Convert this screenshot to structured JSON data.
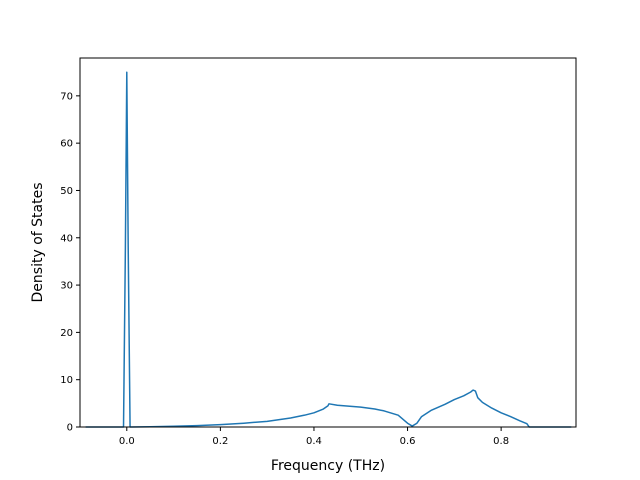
{
  "chart_data": {
    "type": "line",
    "title": "",
    "xlabel": "Frequency (THz)",
    "ylabel": "Density of States",
    "xlim": [
      -0.1,
      0.96
    ],
    "ylim": [
      0,
      78
    ],
    "x_ticks": [
      0.0,
      0.2,
      0.4,
      0.6,
      0.8
    ],
    "x_tick_labels": [
      "0.0",
      "0.2",
      "0.4",
      "0.6",
      "0.8"
    ],
    "y_ticks": [
      0,
      10,
      20,
      30,
      40,
      50,
      60,
      70
    ],
    "y_tick_labels": [
      "0",
      "10",
      "20",
      "30",
      "40",
      "50",
      "60",
      "70"
    ],
    "grid": false,
    "legend": "none",
    "series": [
      {
        "color": "#1f77b4",
        "x": [
          -0.088,
          -0.007,
          -0.003,
          0.0,
          0.003,
          0.007,
          0.05,
          0.1,
          0.15,
          0.2,
          0.25,
          0.3,
          0.35,
          0.38,
          0.4,
          0.42,
          0.43,
          0.432,
          0.45,
          0.5,
          0.53,
          0.55,
          0.58,
          0.6,
          0.61,
          0.62,
          0.63,
          0.65,
          0.68,
          0.7,
          0.72,
          0.735,
          0.74,
          0.745,
          0.75,
          0.76,
          0.78,
          0.8,
          0.82,
          0.84,
          0.855,
          0.86,
          0.9,
          0.95
        ],
        "y": [
          0.0,
          0.0,
          38.0,
          75.0,
          38.0,
          0.0,
          0.05,
          0.15,
          0.3,
          0.5,
          0.8,
          1.2,
          1.9,
          2.5,
          3.0,
          3.8,
          4.5,
          4.9,
          4.6,
          4.2,
          3.8,
          3.4,
          2.5,
          0.8,
          0.2,
          0.8,
          2.2,
          3.5,
          4.8,
          5.8,
          6.6,
          7.4,
          7.8,
          7.6,
          6.2,
          5.2,
          4.0,
          3.0,
          2.2,
          1.3,
          0.7,
          0.0,
          0.0,
          0.0
        ]
      }
    ]
  }
}
